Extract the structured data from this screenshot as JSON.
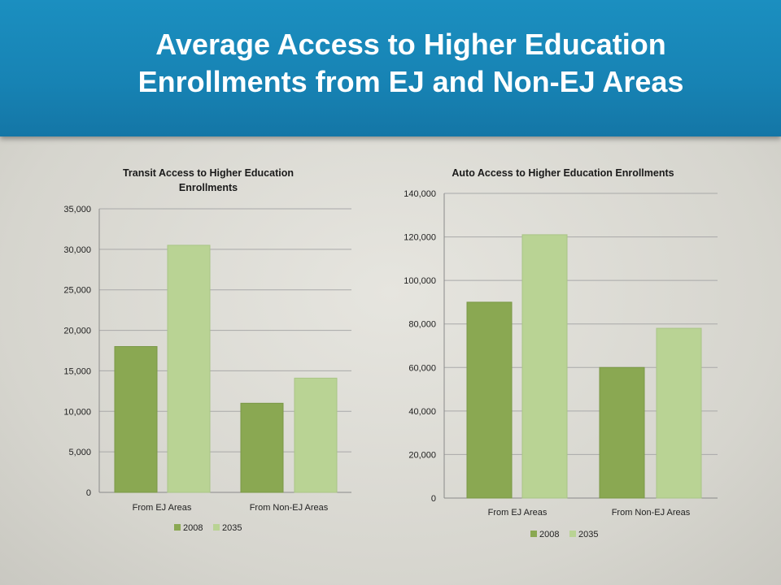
{
  "slide": {
    "title_line1": "Average Access to Higher Education",
    "title_line2": "Enrollments from EJ and Non-EJ Areas",
    "header_color": "#1783b4"
  },
  "colors": {
    "series_2008": "#8aa852",
    "series_2035": "#b9d394",
    "grid": "#a9a9a9"
  },
  "chart_data": [
    {
      "type": "bar",
      "title": "Transit Access to Higher Education Enrollments",
      "title_lines": [
        "Transit Access to Higher Education",
        "Enrollments"
      ],
      "categories": [
        "From EJ Areas",
        "From Non-EJ Areas"
      ],
      "series": [
        {
          "name": "2008",
          "values": [
            18000,
            11000
          ]
        },
        {
          "name": "2035",
          "values": [
            30500,
            14100
          ]
        }
      ],
      "ylim": [
        0,
        35000
      ],
      "yticks": [
        0,
        5000,
        10000,
        15000,
        20000,
        25000,
        30000,
        35000
      ],
      "ytick_labels": [
        "0",
        "5,000",
        "10,000",
        "15,000",
        "20,000",
        "25,000",
        "30,000",
        "35,000"
      ],
      "grid": true,
      "legend": "bottom"
    },
    {
      "type": "bar",
      "title": "Auto Access to Higher Education Enrollments",
      "title_lines": [
        "Auto Access to Higher Education Enrollments"
      ],
      "categories": [
        "From EJ Areas",
        "From Non-EJ Areas"
      ],
      "series": [
        {
          "name": "2008",
          "values": [
            90000,
            60000
          ]
        },
        {
          "name": "2035",
          "values": [
            121000,
            78000
          ]
        }
      ],
      "ylim": [
        0,
        140000
      ],
      "yticks": [
        0,
        20000,
        40000,
        60000,
        80000,
        100000,
        120000,
        140000
      ],
      "ytick_labels": [
        "0",
        "20,000",
        "40,000",
        "60,000",
        "80,000",
        "100,000",
        "120,000",
        "140,000"
      ],
      "grid": true,
      "legend": "bottom"
    }
  ]
}
